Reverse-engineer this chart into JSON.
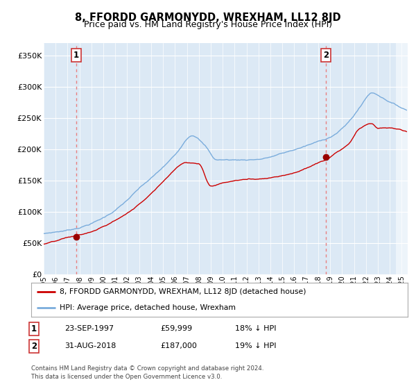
{
  "title": "8, FFORDD GARMONYDD, WREXHAM, LL12 8JD",
  "subtitle": "Price paid vs. HM Land Registry's House Price Index (HPI)",
  "xlim": [
    1995.0,
    2025.5
  ],
  "ylim": [
    0,
    370000
  ],
  "yticks": [
    0,
    50000,
    100000,
    150000,
    200000,
    250000,
    300000,
    350000
  ],
  "ytick_labels": [
    "£0",
    "£50K",
    "£100K",
    "£150K",
    "£200K",
    "£250K",
    "£300K",
    "£350K"
  ],
  "bg_color": "#dce9f5",
  "grid_color": "#ffffff",
  "sale1_date": 1997.73,
  "sale1_price": 59999,
  "sale1_label": "1",
  "sale2_date": 2018.66,
  "sale2_price": 187000,
  "sale2_label": "2",
  "red_line_color": "#cc0000",
  "blue_line_color": "#7aacdc",
  "marker_color": "#990000",
  "dashed_line_color": "#e88080",
  "legend_label1": "8, FFORDD GARMONYDD, WREXHAM, LL12 8JD (detached house)",
  "legend_label2": "HPI: Average price, detached house, Wrexham",
  "table_row1": [
    "1",
    "23-SEP-1997",
    "£59,999",
    "18% ↓ HPI"
  ],
  "table_row2": [
    "2",
    "31-AUG-2018",
    "£187,000",
    "19% ↓ HPI"
  ],
  "footer": "Contains HM Land Registry data © Crown copyright and database right 2024.\nThis data is licensed under the Open Government Licence v3.0.",
  "title_fontsize": 10.5,
  "subtitle_fontsize": 9
}
